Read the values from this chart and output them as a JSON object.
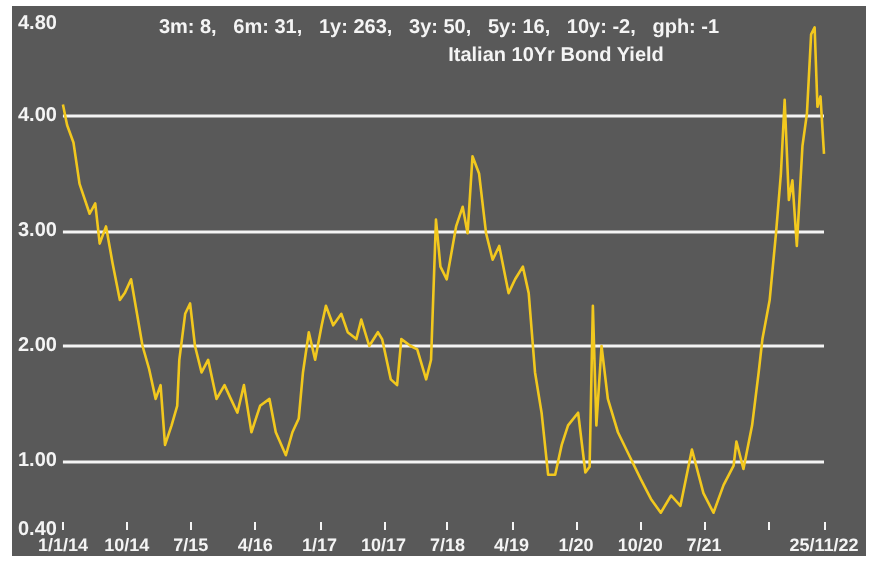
{
  "chart_data": {
    "type": "line",
    "title": "3m: 8,   6m: 31,   1y: 263,   3y: 50,   5y: 16,   10y: -2,   gph: -1",
    "subtitle": "Italian 10Yr Bond Yield",
    "x": [
      "2014-01-01",
      "2014-01-19",
      "2014-02-15",
      "2014-03-13",
      "2014-04-25",
      "2014-05-19",
      "2014-06-07",
      "2014-07-04",
      "2014-08-01",
      "2014-09-01",
      "2014-09-22",
      "2014-10-19",
      "2014-11-10",
      "2014-12-07",
      "2015-01-04",
      "2015-02-01",
      "2015-02-22",
      "2015-03-13",
      "2015-04-10",
      "2015-05-04",
      "2015-05-13",
      "2015-06-07",
      "2015-06-28",
      "2015-07-19",
      "2015-08-16",
      "2015-09-13",
      "2015-10-19",
      "2015-11-22",
      "2015-12-19",
      "2016-01-16",
      "2016-02-13",
      "2016-03-16",
      "2016-04-22",
      "2016-06-01",
      "2016-06-28",
      "2016-08-10",
      "2016-09-07",
      "2016-10-04",
      "2016-10-22",
      "2016-11-16",
      "2016-12-13",
      "2017-01-10",
      "2017-01-28",
      "2017-02-28",
      "2017-04-04",
      "2017-05-01",
      "2017-06-07",
      "2017-06-28",
      "2017-08-01",
      "2017-09-07",
      "2017-09-25",
      "2017-11-01",
      "2017-11-28",
      "2017-12-16",
      "2018-01-25",
      "2018-02-22",
      "2018-04-01",
      "2018-04-22",
      "2018-05-13",
      "2018-06-01",
      "2018-06-28",
      "2018-08-07",
      "2018-09-04",
      "2018-09-25",
      "2018-10-16",
      "2018-11-13",
      "2018-12-13",
      "2019-01-10",
      "2019-02-07",
      "2019-03-19",
      "2019-04-16",
      "2019-05-19",
      "2019-06-13",
      "2019-07-10",
      "2019-08-07",
      "2019-09-04",
      "2019-10-04",
      "2019-11-01",
      "2019-11-28",
      "2020-01-10",
      "2020-02-10",
      "2020-02-28",
      "2020-03-13",
      "2020-03-28",
      "2020-04-19",
      "2020-05-16",
      "2020-06-28",
      "2020-08-22",
      "2020-10-04",
      "2020-11-16",
      "2020-12-28",
      "2021-02-10",
      "2021-03-22",
      "2021-05-10",
      "2021-06-28",
      "2021-08-10",
      "2021-09-22",
      "2021-11-04",
      "2021-11-16",
      "2021-12-16",
      "2022-01-22",
      "2022-02-19",
      "2022-03-07",
      "2022-04-07",
      "2022-05-04",
      "2022-05-25",
      "2022-06-10",
      "2022-06-28",
      "2022-07-13",
      "2022-08-01",
      "2022-08-25",
      "2022-09-13",
      "2022-10-01",
      "2022-10-16",
      "2022-10-28",
      "2022-11-10",
      "2022-11-25"
    ],
    "series": [
      {
        "color": "#f2c81e",
        "values": [
          4.1,
          3.92,
          3.77,
          3.41,
          3.15,
          3.24,
          2.89,
          3.04,
          2.72,
          2.4,
          2.46,
          2.58,
          2.32,
          2.0,
          1.8,
          1.54,
          1.66,
          1.14,
          1.31,
          1.48,
          1.88,
          2.28,
          2.37,
          2.0,
          1.77,
          1.88,
          1.54,
          1.66,
          1.54,
          1.42,
          1.66,
          1.25,
          1.48,
          1.54,
          1.25,
          1.05,
          1.25,
          1.37,
          1.77,
          2.12,
          1.88,
          2.18,
          2.35,
          2.18,
          2.28,
          2.12,
          2.06,
          2.23,
          2.0,
          2.12,
          2.06,
          1.71,
          1.66,
          2.06,
          2.0,
          1.97,
          1.71,
          1.88,
          3.1,
          2.69,
          2.58,
          3.04,
          3.21,
          2.98,
          3.65,
          3.5,
          2.98,
          2.75,
          2.87,
          2.46,
          2.58,
          2.69,
          2.46,
          1.77,
          1.42,
          0.88,
          0.88,
          1.14,
          1.31,
          1.42,
          0.9,
          0.95,
          2.35,
          1.31,
          2.0,
          1.54,
          1.25,
          1.02,
          0.84,
          0.67,
          0.55,
          0.7,
          0.61,
          1.1,
          0.72,
          0.55,
          0.79,
          0.96,
          1.17,
          0.93,
          1.31,
          1.77,
          2.06,
          2.4,
          2.98,
          3.5,
          4.14,
          3.27,
          3.44,
          2.87,
          3.74,
          4.02,
          4.71,
          4.77,
          4.08,
          4.17,
          3.67
        ]
      }
    ],
    "xlim": [
      "2014-01-01",
      "2022-11-25"
    ],
    "xticks": [
      {
        "value": "2014-01-01",
        "label": "1/1/14"
      },
      {
        "value": "2014-10-01",
        "label": "10/14"
      },
      {
        "value": "2015-07-01",
        "label": "7/15"
      },
      {
        "value": "2016-04-01",
        "label": "4/16"
      },
      {
        "value": "2017-01-01",
        "label": "1/17"
      },
      {
        "value": "2017-10-01",
        "label": "10/17"
      },
      {
        "value": "2018-07-01",
        "label": "7/18"
      },
      {
        "value": "2019-04-01",
        "label": "4/19"
      },
      {
        "value": "2020-01-01",
        "label": "1/20"
      },
      {
        "value": "2020-10-01",
        "label": "10/20"
      },
      {
        "value": "2021-07-01",
        "label": "7/21"
      },
      {
        "value": "2022-04-01",
        "label": null
      },
      {
        "value": "2022-11-25",
        "label": "25/11/22"
      }
    ],
    "ylim": [
      0.4,
      4.8
    ],
    "yticks": [
      {
        "value": 0.4,
        "label": "0.40"
      },
      {
        "value": 1,
        "label": "1.00"
      },
      {
        "value": 2,
        "label": "2.00"
      },
      {
        "value": 3,
        "label": "3.00"
      },
      {
        "value": 4,
        "label": "4.00"
      },
      {
        "value": 4.8,
        "label": "4.80"
      }
    ],
    "grid": "y",
    "marker": "none"
  }
}
